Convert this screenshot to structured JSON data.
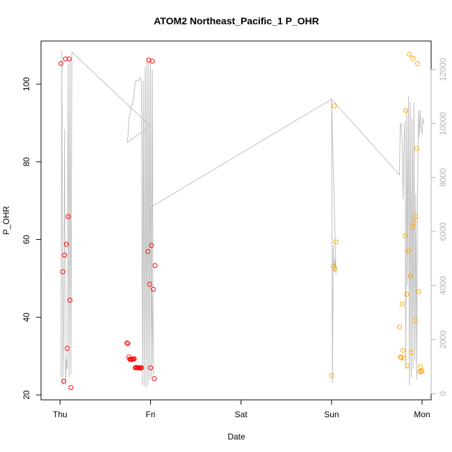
{
  "chart_data": {
    "type": "scatter",
    "title": "ATOM2 Northeast_Pacific_1 P_OHR",
    "xlabel": "Date",
    "ylabel": "P_OHR",
    "x_tick_labels": [
      "Thu",
      "Fri",
      "Sat",
      "Sun",
      "Mon"
    ],
    "y_ticks": [
      20,
      40,
      60,
      80,
      100
    ],
    "y_right_ticks": [
      0,
      2000,
      4000,
      6000,
      8000,
      10000,
      12000
    ],
    "ylim": [
      20,
      110
    ],
    "y_right_lim": [
      0,
      12800
    ],
    "xlim_days": [
      -0.21,
      4.1
    ],
    "grid": false,
    "colors": {
      "red_points": "#ff0000",
      "orange_points": "#ffa500",
      "grey_line": "#bebebe",
      "right_axis": "#b3b3b3"
    },
    "series": [
      {
        "x": [
          0.01,
          0.03,
          0.04,
          0.05,
          0.06,
          0.07,
          0.08,
          0.09,
          0.1,
          0.11,
          0.12,
          0.97,
          0.98,
          0.99,
          1.0,
          1.01,
          1.02,
          1.03,
          1.04
        ],
        "y": [
          105.3,
          51.7,
          23.5,
          56,
          106.5,
          58.8,
          32,
          65.9,
          106.5,
          44.4,
          21.9,
          56.9,
          106.2,
          48.5,
          27,
          58.5,
          105.9,
          47.2,
          24.2
        ]
      },
      {
        "x": [
          0.74,
          0.75,
          0.76,
          0.77,
          0.78,
          0.79,
          0.8,
          0.81,
          0.82,
          0.83,
          0.84,
          0.85,
          0.86,
          0.87,
          0.88,
          0.89,
          0.9,
          1.05
        ],
        "y": [
          33.4,
          33.2,
          29.8,
          29.2,
          29.2,
          29.1,
          29.2,
          29.3,
          29.3,
          27,
          27.1,
          27,
          27,
          27,
          27,
          26.9,
          27,
          53.3
        ]
      },
      {
        "x": [
          3.0,
          3.02,
          3.03,
          3.04,
          3.05
        ],
        "y": [
          25,
          53.2,
          94.4,
          52.5,
          59.4
        ],
        "color": "orange"
      },
      {
        "x": [
          3.75,
          3.76,
          3.77,
          3.78,
          3.79,
          3.8,
          3.81,
          3.82,
          3.83,
          3.84,
          3.85,
          3.86,
          3.87,
          3.88,
          3.89,
          3.9,
          3.91,
          3.92,
          3.93,
          3.94,
          3.95,
          3.96,
          3.97,
          3.98,
          3.99,
          4.0
        ],
        "y": [
          37.5,
          29.8,
          29.6,
          43.4,
          31.5,
          29.5,
          61,
          93.2,
          45.9,
          27.5,
          57.1,
          107.7,
          50.6,
          30.9,
          63.2,
          106.6,
          64.4,
          39.2,
          66,
          83.4,
          105.3,
          46.6,
          26,
          27.3,
          26,
          26.2
        ],
        "color": "orange"
      }
    ],
    "line_series": {
      "x": [
        0.01,
        0.02,
        0.03,
        0.04,
        0.05,
        0.06,
        0.07,
        0.08,
        0.09,
        0.1,
        0.11,
        0.12,
        0.13,
        1.0,
        0.74,
        0.75,
        0.76,
        0.77,
        0.78,
        0.79,
        0.8,
        0.81,
        0.82,
        0.83,
        0.84,
        0.85,
        0.86,
        0.87,
        0.88,
        0.89,
        0.9,
        0.91,
        0.92,
        0.93,
        0.94,
        0.95,
        0.96,
        0.97,
        0.98,
        0.99,
        1.0,
        1.01,
        1.02,
        1.03,
        1.0,
        3.0,
        3.01,
        3.02,
        3.03,
        3.04,
        3.05,
        3.0,
        3.75,
        3.76,
        3.77,
        3.78,
        3.79,
        3.8,
        3.81,
        3.82,
        3.83,
        3.84,
        3.85,
        3.86,
        3.87,
        3.88,
        3.89,
        3.9,
        3.91,
        3.92,
        3.93,
        3.94,
        3.95,
        3.96,
        3.97,
        3.98,
        3.99,
        4.0,
        4.01,
        4.02
      ],
      "y": [
        600,
        12700,
        300,
        2500,
        9800,
        300,
        1300,
        900,
        12200,
        600,
        12400,
        700,
        12650,
        9900,
        9300,
        9500,
        10200,
        10300,
        10500,
        10700,
        10700,
        10900,
        11200,
        11500,
        11600,
        11600,
        11600,
        11600,
        11700,
        11700,
        11500,
        300,
        11600,
        300,
        12100,
        200,
        12400,
        300,
        12300,
        500,
        12200,
        600,
        12000,
        700,
        6900,
        10900,
        400,
        5500,
        4500,
        5000,
        4400,
        10900,
        8100,
        10000,
        10000,
        9200,
        7200,
        9300,
        10100,
        900,
        10500,
        4000,
        11000,
        300,
        10800,
        600,
        10200,
        900,
        10800,
        1200,
        7400,
        500,
        7200,
        10500,
        9500,
        10500,
        9800,
        9600,
        10200,
        10000
      ]
    }
  }
}
